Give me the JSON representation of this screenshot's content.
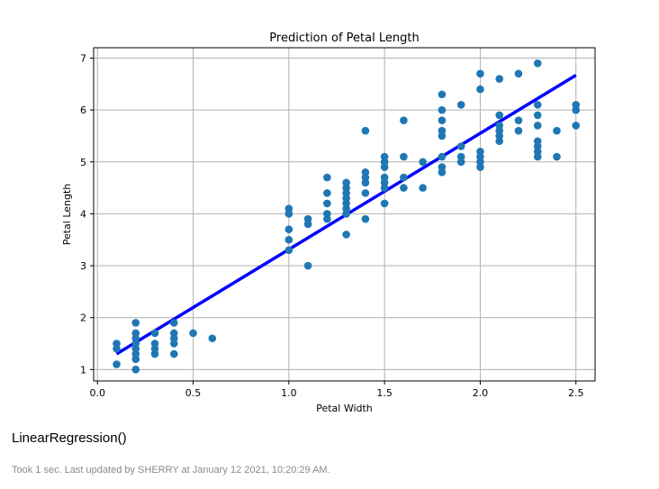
{
  "chart_data": {
    "type": "scatter",
    "title": "Prediction of Petal Length",
    "xlabel": "Petal Width",
    "ylabel": "Petal Length",
    "xlim": [
      -0.02,
      2.6
    ],
    "ylim": [
      0.78,
      7.2
    ],
    "x_ticks": [
      "0.0",
      "0.5",
      "1.0",
      "1.5",
      "2.0",
      "2.5"
    ],
    "y_ticks": [
      "1",
      "2",
      "3",
      "4",
      "5",
      "6",
      "7"
    ],
    "grid": true,
    "series": [
      {
        "kind": "scatter",
        "color": "#1f77b4",
        "points": [
          [
            0.1,
            1.5
          ],
          [
            0.1,
            1.4
          ],
          [
            0.1,
            1.1
          ],
          [
            0.2,
            1.9
          ],
          [
            0.2,
            1.7
          ],
          [
            0.2,
            1.6
          ],
          [
            0.2,
            1.5
          ],
          [
            0.2,
            1.4
          ],
          [
            0.2,
            1.3
          ],
          [
            0.2,
            1.2
          ],
          [
            0.2,
            1.0
          ],
          [
            0.3,
            1.7
          ],
          [
            0.3,
            1.5
          ],
          [
            0.3,
            1.4
          ],
          [
            0.3,
            1.3
          ],
          [
            0.4,
            1.9
          ],
          [
            0.4,
            1.7
          ],
          [
            0.4,
            1.6
          ],
          [
            0.4,
            1.5
          ],
          [
            0.4,
            1.3
          ],
          [
            0.5,
            1.7
          ],
          [
            0.6,
            1.6
          ],
          [
            1.0,
            4.1
          ],
          [
            1.0,
            4.0
          ],
          [
            1.0,
            3.7
          ],
          [
            1.0,
            3.5
          ],
          [
            1.0,
            3.3
          ],
          [
            1.1,
            3.9
          ],
          [
            1.1,
            3.8
          ],
          [
            1.1,
            3.0
          ],
          [
            1.2,
            4.7
          ],
          [
            1.2,
            4.4
          ],
          [
            1.2,
            4.2
          ],
          [
            1.2,
            4.0
          ],
          [
            1.2,
            3.9
          ],
          [
            1.3,
            4.6
          ],
          [
            1.3,
            4.5
          ],
          [
            1.3,
            4.4
          ],
          [
            1.3,
            4.3
          ],
          [
            1.3,
            4.2
          ],
          [
            1.3,
            4.1
          ],
          [
            1.3,
            4.0
          ],
          [
            1.3,
            3.6
          ],
          [
            1.4,
            5.6
          ],
          [
            1.4,
            4.8
          ],
          [
            1.4,
            4.7
          ],
          [
            1.4,
            4.6
          ],
          [
            1.4,
            4.4
          ],
          [
            1.4,
            3.9
          ],
          [
            1.5,
            5.1
          ],
          [
            1.5,
            5.0
          ],
          [
            1.5,
            4.9
          ],
          [
            1.5,
            4.7
          ],
          [
            1.5,
            4.6
          ],
          [
            1.5,
            4.5
          ],
          [
            1.5,
            4.2
          ],
          [
            1.6,
            5.8
          ],
          [
            1.6,
            5.1
          ],
          [
            1.6,
            4.7
          ],
          [
            1.6,
            4.5
          ],
          [
            1.7,
            5.0
          ],
          [
            1.7,
            4.5
          ],
          [
            1.8,
            6.3
          ],
          [
            1.8,
            6.0
          ],
          [
            1.8,
            5.8
          ],
          [
            1.8,
            5.6
          ],
          [
            1.8,
            5.5
          ],
          [
            1.8,
            5.1
          ],
          [
            1.8,
            4.9
          ],
          [
            1.8,
            4.8
          ],
          [
            1.9,
            6.1
          ],
          [
            1.9,
            5.3
          ],
          [
            1.9,
            5.1
          ],
          [
            1.9,
            5.0
          ],
          [
            2.0,
            6.7
          ],
          [
            2.0,
            6.4
          ],
          [
            2.0,
            5.2
          ],
          [
            2.0,
            5.1
          ],
          [
            2.0,
            5.0
          ],
          [
            2.0,
            4.9
          ],
          [
            2.1,
            6.6
          ],
          [
            2.1,
            5.9
          ],
          [
            2.1,
            5.7
          ],
          [
            2.1,
            5.6
          ],
          [
            2.1,
            5.5
          ],
          [
            2.1,
            5.4
          ],
          [
            2.2,
            6.7
          ],
          [
            2.2,
            5.8
          ],
          [
            2.2,
            5.6
          ],
          [
            2.3,
            6.9
          ],
          [
            2.3,
            6.1
          ],
          [
            2.3,
            5.9
          ],
          [
            2.3,
            5.7
          ],
          [
            2.3,
            5.4
          ],
          [
            2.3,
            5.3
          ],
          [
            2.3,
            5.2
          ],
          [
            2.3,
            5.1
          ],
          [
            2.4,
            5.6
          ],
          [
            2.4,
            5.1
          ],
          [
            2.5,
            6.1
          ],
          [
            2.5,
            6.0
          ],
          [
            2.5,
            5.7
          ]
        ]
      },
      {
        "kind": "line",
        "color": "#0000ff",
        "points": [
          [
            0.1,
            1.3
          ],
          [
            2.5,
            6.67
          ]
        ]
      }
    ]
  },
  "output": {
    "text": "LinearRegression()"
  },
  "status": {
    "text": "Took 1 sec. Last updated by SHERRY at January 12 2021, 10:20:29 AM."
  }
}
